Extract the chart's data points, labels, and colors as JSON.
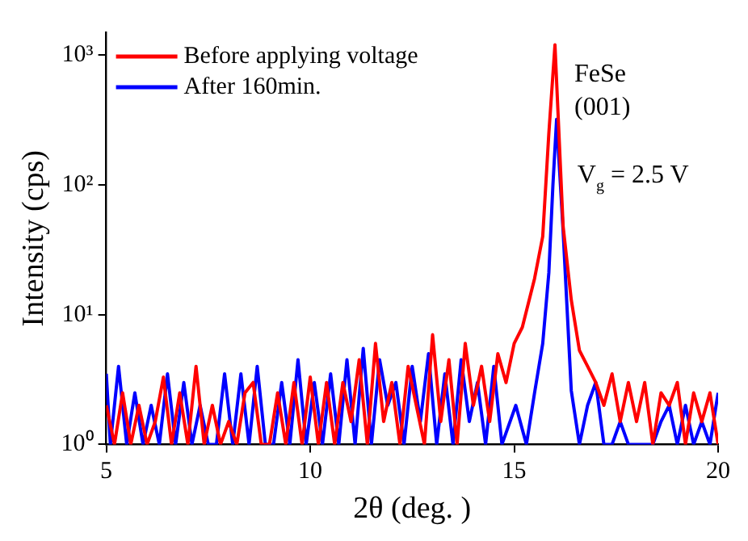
{
  "chart_data": {
    "type": "line",
    "xlabel": "2θ (deg. )",
    "ylabel": "Intensity (cps)",
    "log": "y",
    "legend": "top left",
    "marker": "none",
    "line_style": "solid",
    "grid": false,
    "xlim": [
      5,
      20
    ],
    "xticks": [
      5,
      10,
      15,
      20
    ],
    "ylim": [
      1,
      1500
    ],
    "yticks": [
      {
        "value": 1,
        "label": "10⁰"
      },
      {
        "value": 10,
        "label": "10¹"
      },
      {
        "value": 100,
        "label": "10²"
      },
      {
        "value": 1000,
        "label": "10³"
      }
    ],
    "annotations": [
      "FeSe",
      "(001)",
      "V$_{g}$ = 2.5 V"
    ],
    "series": [
      {
        "name": "Before applying voltage",
        "color": "#ff0000",
        "x": [
          5.0,
          5.2,
          5.4,
          5.6,
          5.8,
          6.0,
          6.2,
          6.4,
          6.6,
          6.8,
          7.0,
          7.2,
          7.4,
          7.6,
          7.8,
          8.0,
          8.2,
          8.4,
          8.6,
          8.8,
          9.0,
          9.2,
          9.4,
          9.6,
          9.8,
          10.0,
          10.2,
          10.4,
          10.6,
          10.8,
          11.0,
          11.2,
          11.4,
          11.6,
          11.8,
          12.0,
          12.2,
          12.4,
          12.6,
          12.8,
          13.0,
          13.2,
          13.4,
          13.6,
          13.8,
          14.0,
          14.2,
          14.4,
          14.6,
          14.8,
          15.0,
          15.2,
          15.5,
          15.7,
          15.85,
          16.0,
          16.2,
          16.4,
          16.6,
          16.8,
          17.0,
          17.2,
          17.4,
          17.6,
          17.8,
          18.0,
          18.2,
          18.4,
          18.6,
          18.8,
          19.0,
          19.2,
          19.4,
          19.6,
          19.8,
          20.0
        ],
        "values": [
          2,
          1,
          2.5,
          1,
          2,
          1,
          1.5,
          3.3,
          1,
          2.5,
          1,
          4,
          1,
          2,
          1,
          1.5,
          1,
          2.5,
          3,
          1,
          1,
          2.5,
          1,
          3,
          1,
          3.3,
          1,
          3,
          1,
          3,
          1.5,
          4.5,
          1,
          6,
          1.5,
          3,
          1,
          4,
          2,
          1,
          7,
          1.5,
          4.5,
          1,
          6,
          2,
          4,
          1.5,
          5,
          3,
          6,
          8,
          19,
          40,
          250,
          1200,
          48,
          13,
          5.3,
          4,
          3,
          2,
          3.5,
          1.5,
          3,
          1.5,
          3,
          1,
          2.5,
          2,
          3,
          1,
          2.5,
          1.5,
          2.5,
          1
        ]
      },
      {
        "name": "After 160min.",
        "color": "#0000ff",
        "x": [
          5.0,
          5.1,
          5.3,
          5.5,
          5.7,
          5.9,
          6.1,
          6.3,
          6.5,
          6.7,
          6.9,
          7.1,
          7.3,
          7.5,
          7.7,
          7.9,
          8.1,
          8.3,
          8.5,
          8.7,
          8.9,
          9.1,
          9.3,
          9.5,
          9.7,
          9.9,
          10.1,
          10.3,
          10.5,
          10.7,
          10.9,
          11.1,
          11.3,
          11.5,
          11.7,
          11.9,
          12.1,
          12.3,
          12.5,
          12.7,
          12.9,
          13.1,
          13.3,
          13.5,
          13.7,
          13.9,
          14.1,
          14.3,
          14.5,
          14.7,
          15.04,
          15.3,
          15.5,
          15.7,
          15.85,
          15.95,
          16.04,
          16.2,
          16.4,
          16.6,
          16.8,
          17.0,
          17.2,
          17.4,
          17.6,
          17.8,
          18.0,
          18.2,
          18.4,
          18.6,
          18.8,
          19.0,
          19.2,
          19.4,
          19.6,
          19.8,
          20.0
        ],
        "values": [
          3.5,
          1,
          4,
          1,
          2.5,
          1,
          2,
          1,
          3.5,
          1,
          3,
          1,
          2,
          1,
          1,
          3.5,
          1,
          3.5,
          1,
          4,
          1,
          1,
          3,
          1,
          4.5,
          1,
          3,
          1,
          3.5,
          1,
          4.5,
          1,
          5.5,
          1,
          4.5,
          2,
          3,
          1,
          4,
          1.5,
          5,
          1,
          3.5,
          1,
          4.5,
          1.5,
          3,
          1,
          4,
          1,
          2,
          1,
          2.5,
          6,
          21,
          100,
          320,
          44,
          2.6,
          1,
          2,
          3,
          1,
          1,
          1.5,
          1,
          1,
          1,
          1,
          1.5,
          2,
          1,
          2,
          1,
          1.5,
          1,
          2.5
        ]
      }
    ]
  }
}
